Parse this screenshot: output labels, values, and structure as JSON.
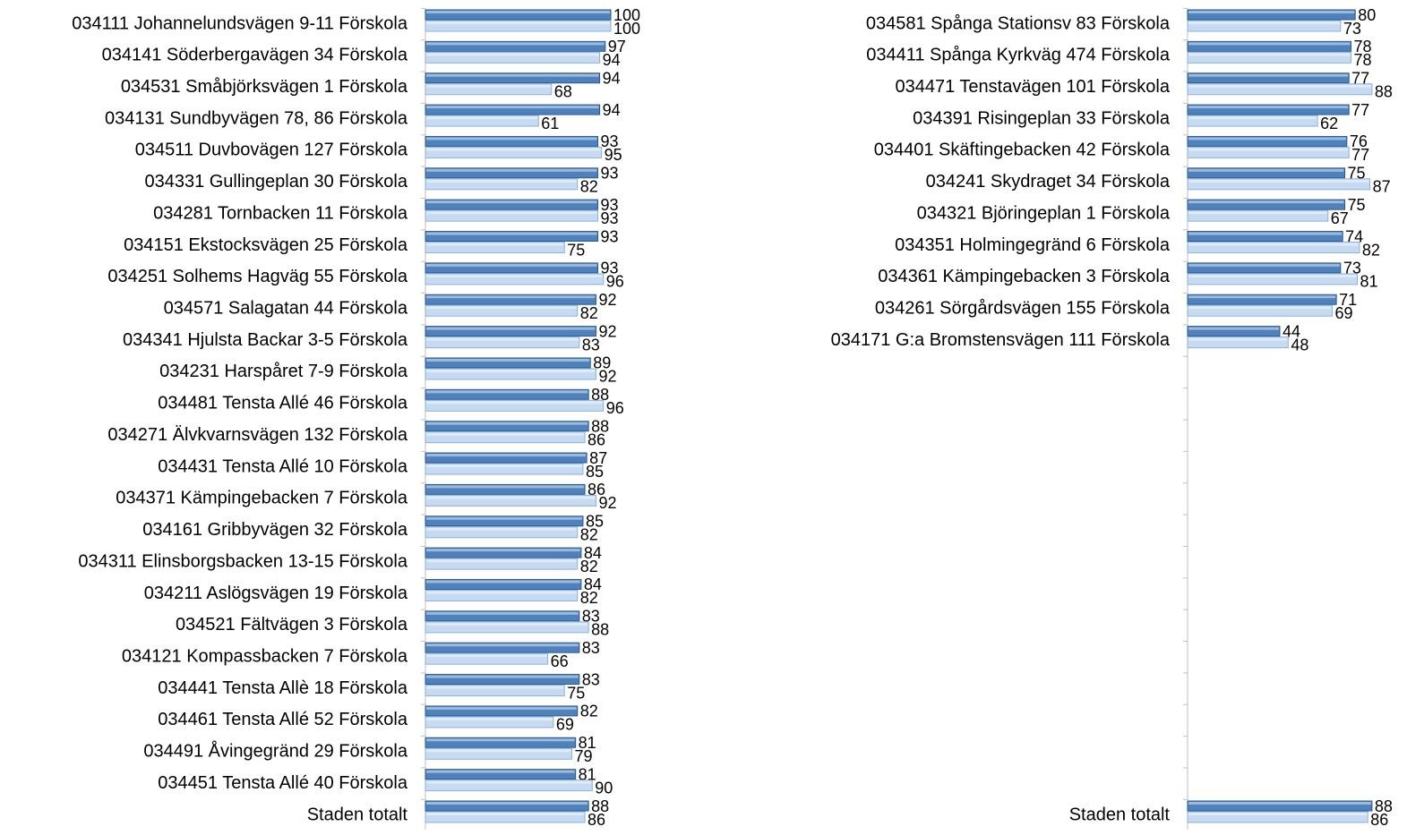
{
  "chart_data": [
    {
      "type": "bar",
      "orientation": "horizontal",
      "categories": [
        "034111 Johannelundsvägen 9-11 Förskola",
        "034141 Söderbergavägen 34 Förskola",
        "034531 Småbjörksvägen 1 Förskola",
        "034131 Sundbyvägen 78, 86 Förskola",
        "034511 Duvbovägen 127 Förskola",
        "034331 Gullingeplan 30 Förskola",
        "034281 Tornbacken 11 Förskola",
        "034151 Ekstocksvägen 25 Förskola",
        "034251 Solhems Hagväg 55 Förskola",
        "034571 Salagatan 44 Förskola",
        "034341 Hjulsta Backar 3-5 Förskola",
        "034231 Harspåret 7-9 Förskola",
        "034481 Tensta Allé 46 Förskola",
        "034271 Älvkvarnsvägen 132 Förskola",
        "034431 Tensta Allé 10 Förskola",
        "034371 Kämpingebacken 7 Förskola",
        "034161 Gribbyvägen 32 Förskola",
        "034311 Elinsborgsbacken 13-15 Förskola",
        "034211 Aslögsvägen 19 Förskola",
        "034521 Fältvägen 3 Förskola",
        "034121 Kompassbacken 7 Förskola",
        "034441 Tensta Allè 18 Förskola",
        "034461 Tensta Allé 52 Förskola",
        "034491 Åvingegränd 29 Förskola",
        "034451 Tensta Allé 40 Förskola",
        "Staden totalt"
      ],
      "series": [
        {
          "color": "#4f81bd",
          "values": [
            100,
            97,
            94,
            94,
            93,
            93,
            93,
            93,
            93,
            92,
            92,
            89,
            88,
            88,
            87,
            86,
            85,
            84,
            84,
            83,
            83,
            83,
            82,
            81,
            81,
            88
          ]
        },
        {
          "color": "#c6dbf2",
          "values": [
            100,
            94,
            68,
            61,
            95,
            82,
            93,
            75,
            96,
            82,
            83,
            92,
            96,
            86,
            85,
            92,
            82,
            82,
            82,
            88,
            66,
            75,
            69,
            79,
            90,
            86
          ]
        }
      ],
      "xlim": [
        0,
        100
      ]
    },
    {
      "type": "bar",
      "orientation": "horizontal",
      "categories": [
        "034581 Spånga Stationsv 83 Förskola",
        "034411 Spånga Kyrkväg 474 Förskola",
        "034471 Tenstavägen 101 Förskola",
        "034391 Risingeplan 33 Förskola",
        "034401 Skäftingebacken 42 Förskola",
        "034241 Skydraget 34 Förskola",
        "034321 Björingeplan 1 Förskola",
        "034351 Holmingegränd 6 Förskola",
        "034361 Kämpingebacken 3 Förskola",
        "034261 Sörgårdsvägen 155 Förskola",
        "034171 G:a Bromstensvägen 111 Förskola",
        null,
        null,
        null,
        null,
        null,
        null,
        null,
        null,
        null,
        null,
        null,
        null,
        null,
        null,
        "Staden totalt"
      ],
      "series": [
        {
          "color": "#4f81bd",
          "values": [
            80,
            78,
            77,
            77,
            76,
            75,
            75,
            74,
            73,
            71,
            44,
            null,
            null,
            null,
            null,
            null,
            null,
            null,
            null,
            null,
            null,
            null,
            null,
            null,
            null,
            88
          ]
        },
        {
          "color": "#c6dbf2",
          "values": [
            73,
            78,
            88,
            62,
            77,
            87,
            67,
            82,
            81,
            69,
            48,
            null,
            null,
            null,
            null,
            null,
            null,
            null,
            null,
            null,
            null,
            null,
            null,
            null,
            null,
            86
          ]
        }
      ],
      "xlim": [
        0,
        100
      ]
    }
  ]
}
